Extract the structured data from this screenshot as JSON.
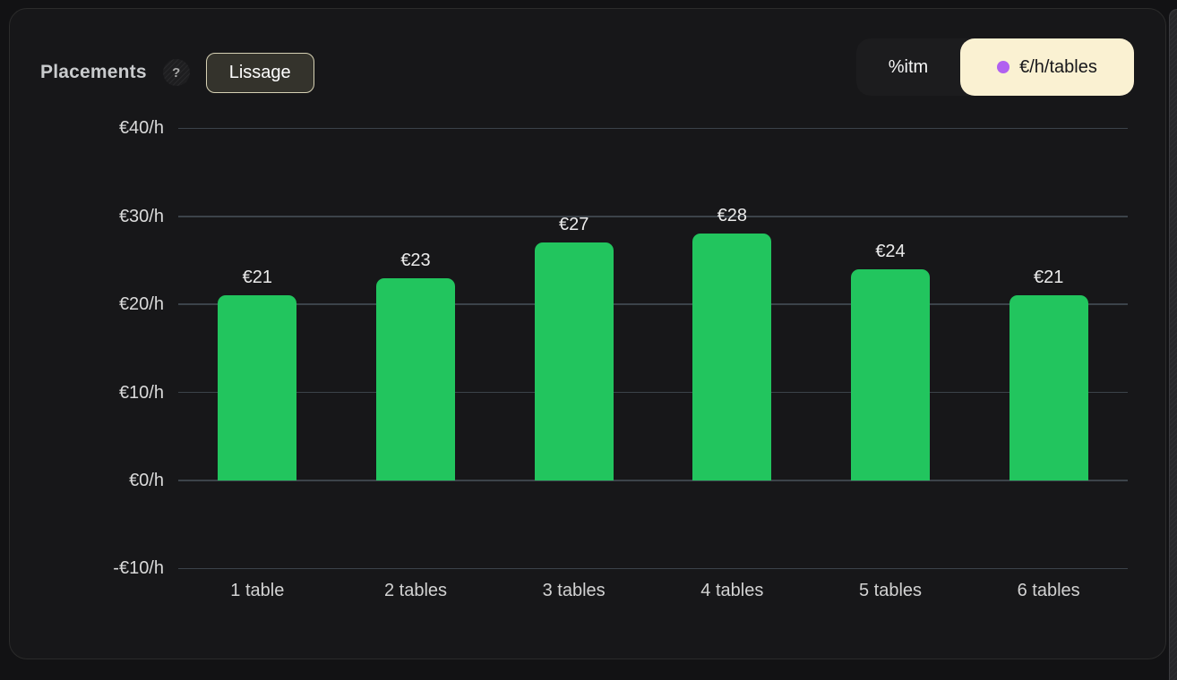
{
  "header": {
    "title": "Placements",
    "help_icon": "?",
    "smoothing_button_label": "Lissage"
  },
  "toggle": {
    "options": [
      {
        "label": "%itm",
        "selected": false
      },
      {
        "label": "€/h/tables",
        "selected": true
      }
    ],
    "selected_bg": "#faf1d2",
    "selected_dot_color": "#b161f0"
  },
  "chart_data": {
    "type": "bar",
    "categories": [
      "1 table",
      "2 tables",
      "3 tables",
      "4 tables",
      "5 tables",
      "6 tables"
    ],
    "values": [
      21,
      23,
      27,
      28,
      24,
      21
    ],
    "value_labels": [
      "€21",
      "€23",
      "€27",
      "€28",
      "€24",
      "€21"
    ],
    "y_ticks": [
      {
        "value": 40,
        "label": "€40/h"
      },
      {
        "value": 30,
        "label": "€30/h"
      },
      {
        "value": 20,
        "label": "€20/h"
      },
      {
        "value": 10,
        "label": "€10/h"
      },
      {
        "value": 0,
        "label": "€0/h"
      },
      {
        "value": -10,
        "label": "-€10/h"
      }
    ],
    "title": "Placements",
    "xlabel": "",
    "ylabel": "",
    "ylim": [
      -10,
      40
    ],
    "grid": true,
    "legend_position": "none",
    "bar_color": "#22c55e",
    "gridline_color": "#3c434a"
  }
}
